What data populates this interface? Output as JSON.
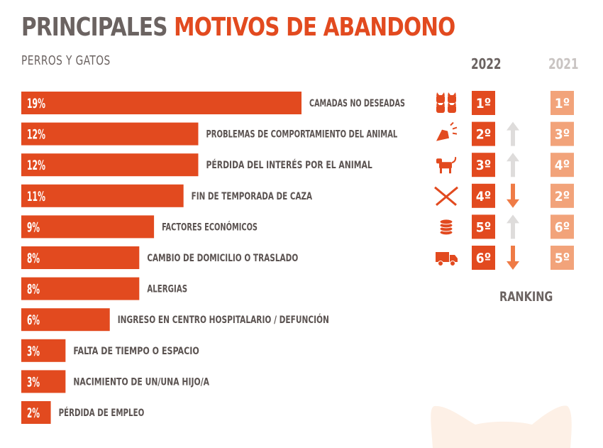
{
  "title_part1": "PRINCIPALES",
  "title_part2": "MOTIVOS DE ABANDONO",
  "subtitle": "PERROS Y GATOS",
  "year_2022": "2022",
  "year_2021": "2021",
  "ranking_label": "RANKING",
  "colors": {
    "bar": "#e24a1f",
    "rank2022": "#e24a1f",
    "rank2021": "#f2a37a",
    "title_gray": "#6b6361",
    "arrow_up": "#dedcdb",
    "arrow_down": "#ef7b46"
  },
  "chart_data": {
    "type": "bar",
    "orientation": "horizontal",
    "unit": "%",
    "categories": [
      "CAMADAS NO DESEADAS",
      "PROBLEMAS DE COMPORTAMIENTO DEL ANIMAL",
      "PÉRDIDA DEL INTERÉS POR EL ANIMAL",
      "FIN DE TEMPORADA DE CAZA",
      "FACTORES ECONÓMICOS",
      "CAMBIO DE DOMICILIO O TRASLADO",
      "ALERGIAS",
      "INGRESO EN CENTRO HOSPITALARIO / DEFUNCIÓN",
      "FALTA DE TIEMPO O ESPACIO",
      "NACIMIENTO DE UN/UNA HIJO/A",
      "PÉRDIDA DE EMPLEO"
    ],
    "values": [
      19,
      12,
      12,
      11,
      9,
      8,
      8,
      6,
      3,
      3,
      2
    ],
    "value_labels": [
      "19%",
      "12%",
      "12%",
      "11%",
      "9%",
      "8%",
      "8%",
      "6%",
      "3%",
      "3%",
      "2%"
    ],
    "xlim": [
      0,
      19
    ]
  },
  "ranking": [
    {
      "icon": "cats-icon",
      "rank_2022": "1º",
      "trend": "none",
      "rank_2021": "1º"
    },
    {
      "icon": "dog-barking-icon",
      "rank_2022": "2º",
      "trend": "up",
      "rank_2021": "3º"
    },
    {
      "icon": "dog-icon",
      "rank_2022": "3º",
      "trend": "up",
      "rank_2021": "4º"
    },
    {
      "icon": "crossed-rifles-icon",
      "rank_2022": "4º",
      "trend": "down",
      "rank_2021": "2º"
    },
    {
      "icon": "coins-icon",
      "rank_2022": "5º",
      "trend": "up",
      "rank_2021": "6º"
    },
    {
      "icon": "truck-icon",
      "rank_2022": "6º",
      "trend": "down",
      "rank_2021": "5º"
    }
  ]
}
